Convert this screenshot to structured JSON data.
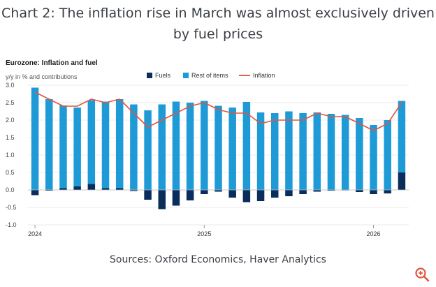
{
  "header": {
    "title_line1": "Chart 2: The inflation rise in March was almost exclusively driven",
    "title_line2": "by fuel prices"
  },
  "footer": {
    "sources": "Sources: Oxford Economics, Haver Analytics"
  },
  "colors": {
    "fuels": "#0b2d5b",
    "rest": "#1e9bd7",
    "inflation": "#e2553f",
    "text": "#3a3f45"
  },
  "icons": {
    "zoom": "zoom-in-icon"
  },
  "chart_data": {
    "type": "bar",
    "title": "Eurozone: Inflation and fuel",
    "ylabel": "y/y in % and contributions",
    "ylim": [
      -1.0,
      3.0
    ],
    "yticks": [
      {
        "v": 3.0,
        "label": "3.0"
      },
      {
        "v": 2.5,
        "label": "2.5"
      },
      {
        "v": 2.0,
        "label": "2.0"
      },
      {
        "v": 1.5,
        "label": "1.5"
      },
      {
        "v": 1.0,
        "label": "1.0"
      },
      {
        "v": 0.5,
        "label": "0.5"
      },
      {
        "v": 0.0,
        "label": "0.0"
      },
      {
        "v": -0.5,
        "label": "-0.5"
      },
      {
        "v": -1.0,
        "label": "-1.0"
      }
    ],
    "xticks": [
      {
        "index": 0,
        "label": "2024"
      },
      {
        "index": 12,
        "label": "2025"
      },
      {
        "index": 24,
        "label": "2026"
      }
    ],
    "legend": [
      "Fuels",
      "Rest of items",
      "Inflation"
    ],
    "categories": [
      "Jan 2024",
      "Feb 2024",
      "Mar 2024",
      "Apr 2024",
      "May 2024",
      "Jun 2024",
      "Jul 2024",
      "Aug 2024",
      "Sep 2024",
      "Oct 2024",
      "Nov 2024",
      "Dec 2024",
      "Jan 2025",
      "Feb 2025",
      "Mar 2025",
      "Apr 2025",
      "May 2025",
      "Jun 2025",
      "Jul 2025",
      "Aug 2025",
      "Sep 2025",
      "Oct 2025",
      "Nov 2025",
      "Dec 2025",
      "Jan 2026",
      "Feb 2026",
      "Mar 2026"
    ],
    "series": [
      {
        "name": "Fuels",
        "values": [
          -0.15,
          -0.02,
          0.05,
          0.1,
          0.17,
          0.05,
          0.05,
          -0.03,
          -0.28,
          -0.55,
          -0.45,
          -0.3,
          -0.12,
          -0.05,
          -0.22,
          -0.35,
          -0.32,
          -0.22,
          -0.18,
          -0.12,
          -0.05,
          -0.02,
          0.0,
          -0.06,
          -0.12,
          -0.1,
          0.5
        ]
      },
      {
        "name": "Rest of items",
        "values": [
          2.93,
          2.6,
          2.37,
          2.26,
          2.4,
          2.48,
          2.55,
          2.45,
          2.28,
          2.45,
          2.53,
          2.5,
          2.55,
          2.41,
          2.36,
          2.52,
          2.22,
          2.2,
          2.25,
          2.2,
          2.22,
          2.18,
          2.15,
          2.06,
          1.86,
          2.0,
          2.05
        ]
      },
      {
        "name": "Inflation",
        "values": [
          2.8,
          2.6,
          2.4,
          2.4,
          2.6,
          2.5,
          2.6,
          2.2,
          1.8,
          2.0,
          2.2,
          2.4,
          2.5,
          2.3,
          2.2,
          2.2,
          1.9,
          2.0,
          2.0,
          2.0,
          2.2,
          2.1,
          2.1,
          1.9,
          1.7,
          1.9,
          2.5
        ]
      }
    ]
  }
}
